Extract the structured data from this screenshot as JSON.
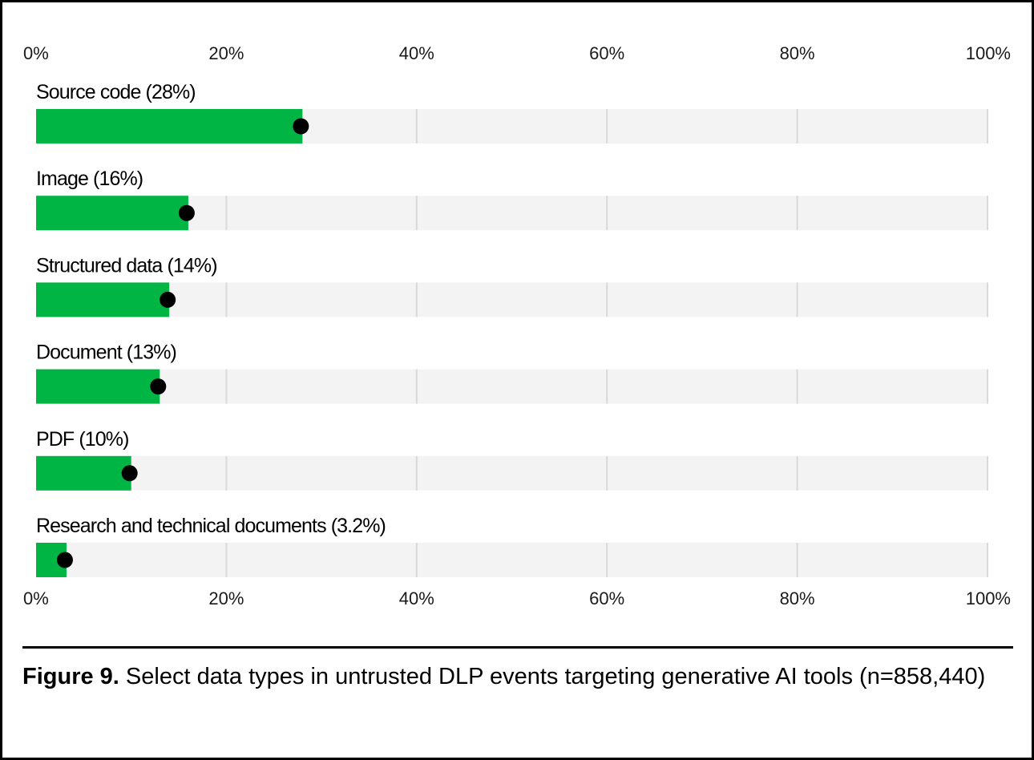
{
  "chart_data": {
    "type": "bar",
    "orientation": "horizontal",
    "categories": [
      "Source code (28%)",
      "Image (16%)",
      "Structured data (14%)",
      "Document (13%)",
      "PDF (10%)",
      "Research and technical documents (3.2%)"
    ],
    "values": [
      28,
      16,
      14,
      13,
      10,
      3.2
    ],
    "x_ticks": [
      "0%",
      "20%",
      "40%",
      "60%",
      "80%",
      "100%"
    ],
    "xlim": [
      0,
      100
    ],
    "axis_position": "top and bottom",
    "grid": true,
    "colors": {
      "bar": "#00b544",
      "track": "#f3f3f3",
      "gridline": "#d9d9d9",
      "marker": "#000000"
    }
  },
  "caption": {
    "label": "Figure 9.",
    "text": " Select data types in untrusted DLP events targeting generative AI tools (n=858,440)"
  }
}
